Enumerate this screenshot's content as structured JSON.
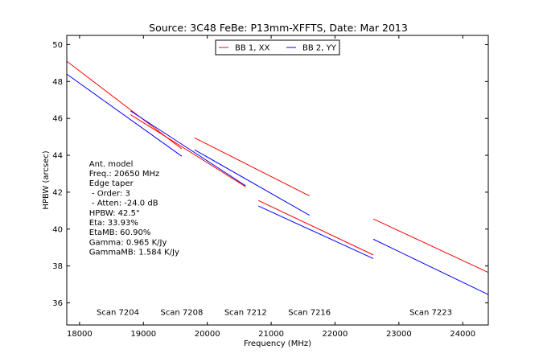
{
  "chart_data": {
    "type": "line",
    "title": "Source: 3C48 FeBe: P13mm-XFFTS, Date: Mar 2013",
    "xlabel": "Frequency (MHz)",
    "ylabel": "HPBW (arcsec)",
    "xlim": [
      17800,
      24400
    ],
    "ylim": [
      34.8,
      50.5
    ],
    "xticks": [
      18000,
      19000,
      20000,
      21000,
      22000,
      23000,
      24000
    ],
    "yticks": [
      36,
      38,
      40,
      42,
      44,
      46,
      48,
      50
    ],
    "grid": false,
    "legend_position": "top-center",
    "series": [
      {
        "name": "BB 1, XX",
        "color": "#ff0000",
        "segments": [
          [
            [
              17800,
              49.1
            ],
            [
              19600,
              44.35
            ]
          ],
          [
            [
              18800,
              46.2
            ],
            [
              20600,
              42.3
            ]
          ],
          [
            [
              19800,
              44.95
            ],
            [
              21600,
              41.8
            ]
          ],
          [
            [
              20800,
              41.55
            ],
            [
              22600,
              38.6
            ]
          ],
          [
            [
              22600,
              40.55
            ],
            [
              24400,
              37.65
            ]
          ]
        ]
      },
      {
        "name": "BB 2, YY",
        "color": "#0000ff",
        "segments": [
          [
            [
              17800,
              48.4
            ],
            [
              19600,
              43.95
            ]
          ],
          [
            [
              18800,
              46.4
            ],
            [
              20600,
              42.35
            ]
          ],
          [
            [
              19800,
              44.3
            ],
            [
              21600,
              40.75
            ]
          ],
          [
            [
              20800,
              41.25
            ],
            [
              22600,
              38.4
            ]
          ],
          [
            [
              22600,
              39.45
            ],
            [
              24400,
              36.45
            ]
          ]
        ]
      }
    ],
    "scan_labels": [
      {
        "text": "Scan 7204",
        "x": 18600
      },
      {
        "text": "Scan 7208",
        "x": 19600
      },
      {
        "text": "Scan 7212",
        "x": 20600
      },
      {
        "text": "Scan 7216",
        "x": 21600
      },
      {
        "text": "Scan 7223",
        "x": 23500
      }
    ],
    "scan_label_y": 35.5,
    "annotation_anchor": {
      "x": 18150,
      "y": 43.4
    },
    "annotation_lines": [
      "Ant. model",
      "Freq.: 20650 MHz",
      "Edge taper",
      " - Order: 3",
      " - Atten: -24.0 dB",
      "HPBW: 42.5\"",
      "Eta: 33.93%",
      "EtaMB: 60.90%",
      "Gamma: 0.965 K/Jy",
      "GammaMB: 1.584 K/Jy"
    ]
  }
}
